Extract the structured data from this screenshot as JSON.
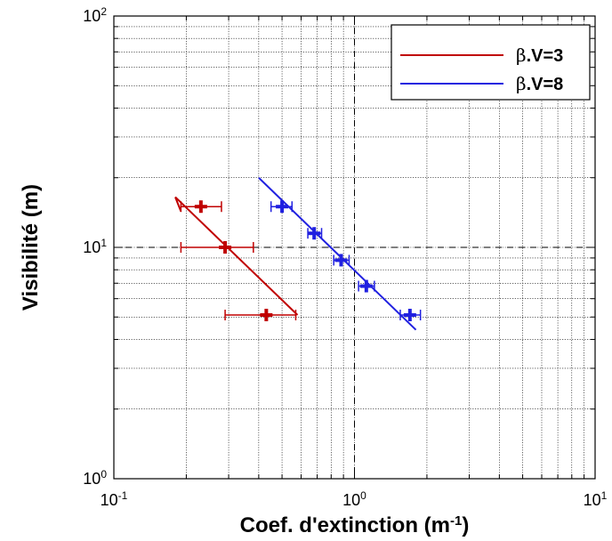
{
  "chart_data": {
    "type": "scatter",
    "x_scale": "log",
    "y_scale": "log",
    "xlim": [
      0.1,
      10
    ],
    "ylim": [
      1,
      100
    ],
    "grid": true,
    "grid_minor": true,
    "legend_position": "top-right",
    "xlabel_main": "Coef. d'extinction (m",
    "xlabel_sup": "-1",
    "xlabel_end": ")",
    "ylabel": "Visibilité (m)",
    "x_ticks": [
      {
        "base": "10",
        "exp": "-1"
      },
      {
        "base": "10",
        "exp": "0"
      },
      {
        "base": "10",
        "exp": "1"
      }
    ],
    "y_ticks": [
      {
        "base": "10",
        "exp": "0"
      },
      {
        "base": "10",
        "exp": "1"
      },
      {
        "base": "10",
        "exp": "2"
      }
    ],
    "reference_lines": {
      "x": 1,
      "y": 10
    },
    "series": [
      {
        "legend_prefix": "β",
        "legend_suffix": ".V=3",
        "color": "#c00000",
        "fit_line": [
          [
            0.18,
            16.5
          ],
          [
            0.58,
            5.1
          ]
        ],
        "fit_line_tail": [
          [
            0.18,
            16.5
          ],
          [
            0.19,
            15.9
          ]
        ],
        "points": [
          {
            "x": 0.23,
            "y": 15.0,
            "xerr": [
              0.19,
              0.28
            ]
          },
          {
            "x": 0.29,
            "y": 10.0,
            "xerr": [
              0.19,
              0.38
            ]
          },
          {
            "x": 0.43,
            "y": 5.1,
            "xerr": [
              0.29,
              0.57
            ]
          }
        ]
      },
      {
        "legend_prefix": "β",
        "legend_suffix": ".V=8",
        "color": "#2020e0",
        "fit_line": [
          [
            0.4,
            20.0
          ],
          [
            1.8,
            4.4
          ]
        ],
        "fit_line_tail": [],
        "points": [
          {
            "x": 0.5,
            "y": 15.0,
            "xerr": [
              0.45,
              0.55
            ]
          },
          {
            "x": 0.68,
            "y": 11.5,
            "xerr": [
              0.64,
              0.73
            ]
          },
          {
            "x": 0.88,
            "y": 8.8,
            "xerr": [
              0.82,
              0.95
            ]
          },
          {
            "x": 1.12,
            "y": 6.8,
            "xerr": [
              1.04,
              1.21
            ]
          },
          {
            "x": 1.7,
            "y": 5.1,
            "xerr": [
              1.55,
              1.88
            ]
          }
        ]
      }
    ]
  }
}
